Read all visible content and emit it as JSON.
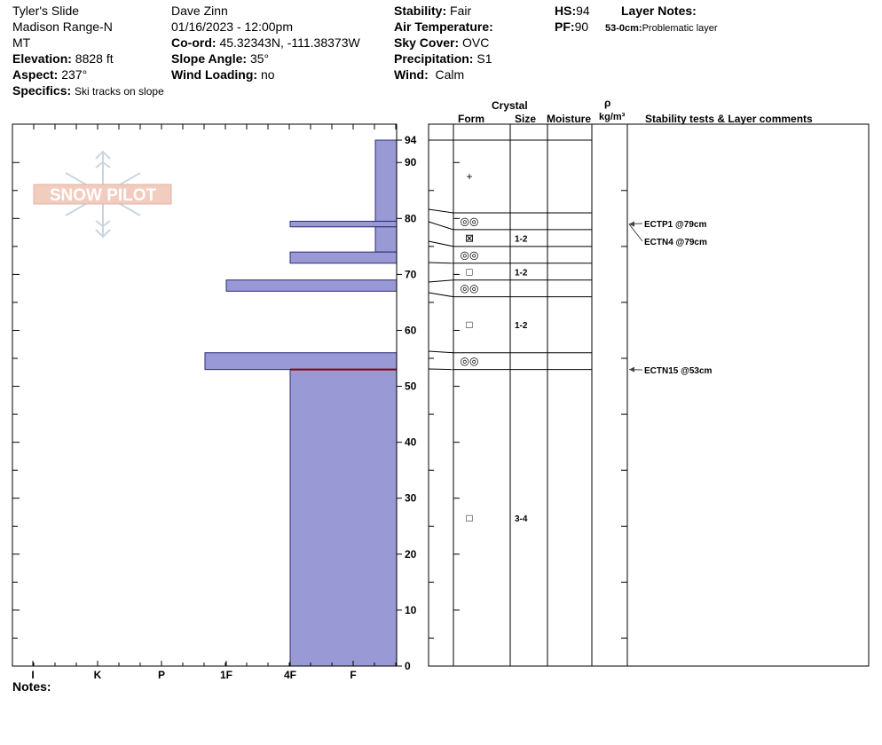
{
  "header": {
    "location": "Tyler's Slide",
    "range": "Madison Range-N",
    "state": "MT",
    "elevation_label": "Elevation:",
    "elevation": "8828 ft",
    "aspect_label": "Aspect:",
    "aspect": "237°",
    "specifics_label": "Specifics:",
    "specifics": "Ski tracks on slope",
    "observer": "Dave Zinn",
    "datetime": "01/16/2023 - 12:00pm",
    "coord_label": "Co-ord:",
    "coord": "45.32343N, -111.38373W",
    "slope_label": "Slope Angle:",
    "slope": "35°",
    "wind_loading_label": "Wind Loading:",
    "wind_loading": "no",
    "stability_label": "Stability:",
    "stability": "Fair",
    "air_temp_label": "Air Temperature:",
    "air_temp": "",
    "sky_label": "Sky Cover:",
    "sky": "OVC",
    "precip_label": "Precipitation:",
    "precip": "S1",
    "wind_label": "Wind:",
    "wind": "Calm",
    "hs_label": "HS:",
    "hs": "94",
    "pf_label": "PF:",
    "pf": "90",
    "layer_notes_label": "Layer Notes:",
    "layer_note_range": "53-0cm:",
    "layer_note_text": "Problematic layer"
  },
  "logo": {
    "text": "SNOW PILOT"
  },
  "columns": {
    "crystal": "Crystal",
    "form": "Form",
    "size": "Size",
    "moisture": "Moisture",
    "rho": "ρ",
    "density_unit": "kg/m³",
    "stability_comments": "Stability tests & Layer comments"
  },
  "notes_label": "Notes:",
  "chart_data": {
    "type": "snow_profile",
    "y_range": [
      0,
      94
    ],
    "y_ticks": [
      0,
      10,
      20,
      30,
      40,
      50,
      60,
      70,
      80,
      90,
      94
    ],
    "hardness_scale": [
      "I",
      "K",
      "P",
      "1F",
      "4F",
      "F"
    ],
    "hardness_layers": [
      {
        "top": 94,
        "bottom": 79.5,
        "hardness": "F-"
      },
      {
        "top": 79.5,
        "bottom": 78.5,
        "hardness": "4F"
      },
      {
        "top": 78.5,
        "bottom": 74,
        "hardness": "F-"
      },
      {
        "top": 74,
        "bottom": 72,
        "hardness": "4F"
      },
      {
        "top": 72,
        "bottom": 69,
        "hardness": "F"
      },
      {
        "top": 69,
        "bottom": 67,
        "hardness": "1F"
      },
      {
        "top": 67,
        "bottom": 56,
        "hardness": "F"
      },
      {
        "top": 56,
        "bottom": 53,
        "hardness": "1F-"
      },
      {
        "top": 53,
        "bottom": 0,
        "hardness": "4F"
      }
    ],
    "layer_boundaries": [
      94,
      81,
      78,
      75,
      72,
      69,
      66,
      56,
      53
    ],
    "grains": [
      {
        "height": 87.5,
        "form": "+",
        "size": ""
      },
      {
        "height": 79.5,
        "form": "◎◎",
        "size": ""
      },
      {
        "height": 76.5,
        "form": "⊠",
        "size": "1-2"
      },
      {
        "height": 73.5,
        "form": "◎◎",
        "size": ""
      },
      {
        "height": 70.5,
        "form": "□",
        "size": "1-2"
      },
      {
        "height": 67.5,
        "form": "◎◎",
        "size": ""
      },
      {
        "height": 61,
        "form": "□",
        "size": "1-2"
      },
      {
        "height": 54.5,
        "form": "◎◎",
        "size": ""
      },
      {
        "height": 26.5,
        "form": "□",
        "size": "3-4"
      }
    ],
    "stability_tests": [
      {
        "height": 79,
        "label": "ECTP1 @79cm"
      },
      {
        "height": 79,
        "label": "ECTN4 @79cm"
      },
      {
        "height": 53,
        "label": "ECTN15 @53cm"
      }
    ],
    "critical_layer_height": 53,
    "colors": {
      "fill": "#9999d6",
      "stroke": "#2a2a7a",
      "critical": "#8b0000"
    }
  }
}
